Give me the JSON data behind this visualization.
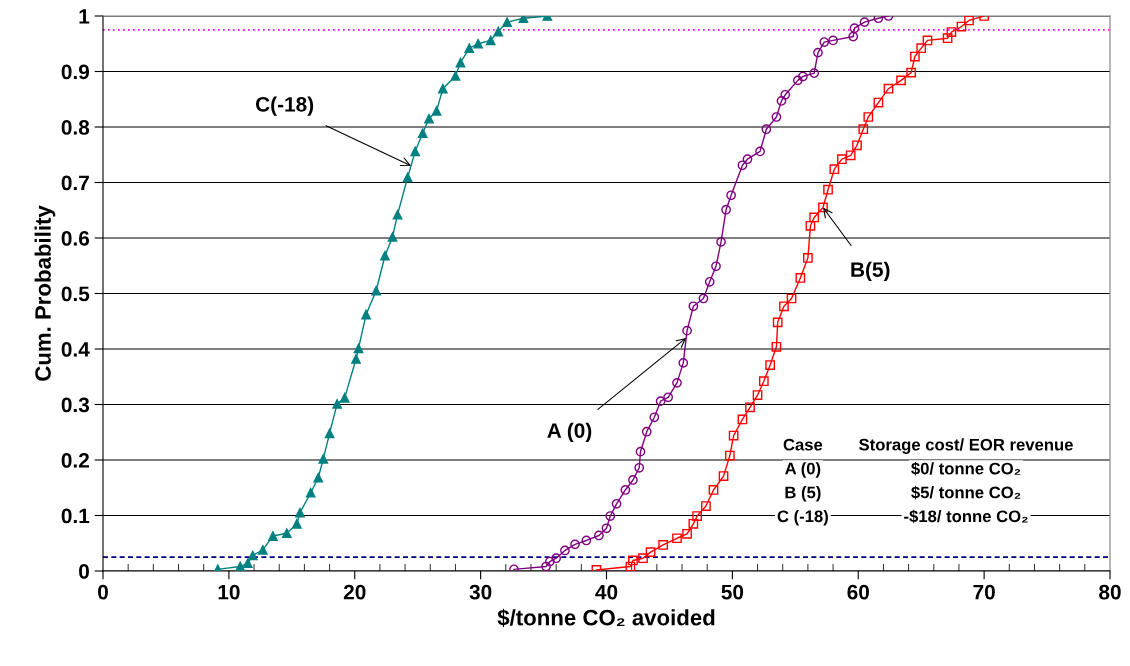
{
  "chart_data": {
    "type": "line",
    "xlabel": "$/tonne CO₂ avoided",
    "ylabel": "Cum. Probability",
    "xlim": [
      0,
      80
    ],
    "xticks": [
      0,
      10,
      20,
      30,
      40,
      50,
      60,
      70,
      80
    ],
    "ylim": [
      0,
      1
    ],
    "yticks": [
      0,
      0.1,
      0.2,
      0.3,
      0.4,
      0.5,
      0.6,
      0.7,
      0.8,
      0.9,
      1
    ],
    "grid": "y",
    "legend": false,
    "series": [
      {
        "color": "#800080",
        "marker": "circle",
        "x": [
          32.65,
          35.2,
          35.5,
          36.0,
          36.7,
          37.5,
          38.4,
          39.4,
          40.0,
          40.3,
          40.8,
          41.5,
          42.1,
          42.6,
          42.7,
          43.2,
          43.8,
          44.3,
          44.9,
          45.6,
          46.1,
          46.4,
          46.9,
          47.7,
          48.2,
          48.7,
          49.1,
          49.5,
          49.9,
          50.8,
          51.2,
          52.2,
          52.7,
          53.5,
          53.9,
          54.2,
          55.2,
          55.6,
          56.5,
          56.8,
          57.3,
          58.0,
          59.6,
          59.7,
          60.5,
          61.6,
          62.4
        ],
        "values": [
          0.003,
          0.008,
          0.017,
          0.023,
          0.037,
          0.048,
          0.055,
          0.064,
          0.077,
          0.099,
          0.121,
          0.146,
          0.164,
          0.186,
          0.215,
          0.251,
          0.277,
          0.306,
          0.313,
          0.339,
          0.375,
          0.433,
          0.477,
          0.491,
          0.521,
          0.549,
          0.593,
          0.651,
          0.677,
          0.731,
          0.742,
          0.756,
          0.796,
          0.818,
          0.847,
          0.858,
          0.884,
          0.891,
          0.897,
          0.934,
          0.953,
          0.956,
          0.963,
          0.978,
          0.989,
          0.996,
          1.0
        ]
      },
      {
        "color": "#ff0000",
        "marker": "square",
        "x": [
          39.2,
          41.9,
          42.1,
          42.9,
          43.5,
          44.5,
          45.6,
          46.4,
          46.9,
          47.2,
          47.9,
          48.5,
          49.3,
          49.8,
          50.1,
          50.8,
          51.4,
          52.0,
          52.5,
          53.0,
          53.5,
          53.6,
          54.1,
          54.7,
          55.4,
          56.0,
          56.2,
          56.5,
          57.2,
          57.6,
          58.1,
          58.7,
          59.4,
          59.9,
          60.4,
          60.8,
          61.6,
          62.4,
          63.4,
          64.2,
          64.5,
          65.0,
          65.5,
          67.1,
          67.4,
          68.2,
          68.8,
          70.0
        ],
        "values": [
          0.002,
          0.008,
          0.019,
          0.023,
          0.034,
          0.047,
          0.059,
          0.067,
          0.085,
          0.099,
          0.117,
          0.146,
          0.171,
          0.208,
          0.244,
          0.273,
          0.295,
          0.317,
          0.342,
          0.371,
          0.404,
          0.448,
          0.477,
          0.491,
          0.528,
          0.564,
          0.622,
          0.637,
          0.655,
          0.687,
          0.724,
          0.742,
          0.749,
          0.767,
          0.796,
          0.818,
          0.844,
          0.869,
          0.884,
          0.898,
          0.927,
          0.942,
          0.956,
          0.96,
          0.971,
          0.981,
          0.992,
          1.0
        ]
      },
      {
        "color": "#008080",
        "marker": "triangle",
        "x": [
          9.12,
          10.9,
          11.5,
          11.9,
          12.7,
          13.5,
          14.6,
          15.4,
          15.65,
          16.5,
          17.1,
          17.5,
          18.0,
          18.6,
          19.2,
          20.1,
          20.3,
          20.9,
          21.7,
          22.4,
          23.0,
          23.4,
          24.2,
          24.8,
          25.4,
          25.9,
          26.5,
          27.0,
          28.0,
          28.4,
          29.1,
          29.8,
          30.8,
          31.4,
          32.1,
          33.4,
          35.3
        ],
        "values": [
          0.003,
          0.008,
          0.014,
          0.028,
          0.038,
          0.063,
          0.068,
          0.085,
          0.105,
          0.141,
          0.168,
          0.202,
          0.248,
          0.301,
          0.312,
          0.382,
          0.401,
          0.462,
          0.505,
          0.568,
          0.602,
          0.642,
          0.709,
          0.756,
          0.789,
          0.815,
          0.829,
          0.869,
          0.892,
          0.916,
          0.942,
          0.95,
          0.956,
          0.972,
          0.989,
          0.996,
          1.0
        ]
      }
    ],
    "ref_lines": [
      {
        "axis": "y",
        "value": 0.975,
        "color": "#ff00ff",
        "line_style": "dotted"
      },
      {
        "axis": "y",
        "value": 0.025,
        "color": "#000080",
        "line_style": "dashed"
      }
    ],
    "annotations": [
      {
        "text": "C(-18)",
        "x": 24.47,
        "y": 0.73
      },
      {
        "text": "A (0)",
        "x": 46.33,
        "y": 0.42
      },
      {
        "text": "B(5)",
        "x": 57.2,
        "y": 0.655
      },
      "Case",
      "Storage cost/ EOR revenue",
      "A (0)",
      "$0/ tonne CO₂",
      "B (5)",
      "$5/ tonne CO₂",
      "C (-18)",
      "-$18/ tonne CO₂"
    ]
  }
}
